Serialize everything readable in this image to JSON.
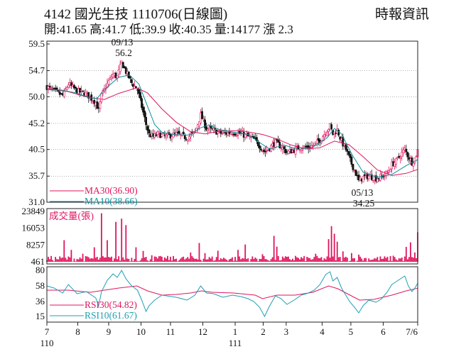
{
  "header": {
    "title": "4142 國光生技 1110706(日線圖)",
    "source": "時報資訊",
    "quote": "開:41.65 高:41.7 低:39.9 收:40.35 量:14177 漲 2.3"
  },
  "colors": {
    "up": "#e0155e",
    "down": "#111111",
    "ma30": "#e0155e",
    "ma10": "#0e8f9c",
    "volume": "#e0155e",
    "rsi30": "#e0155e",
    "rsi10": "#1f9fb4",
    "grid": "#666666"
  },
  "chart_data": [
    {
      "type": "candlestick",
      "panel": "price",
      "yticks": [
        "59.5",
        "54.7",
        "50.0",
        "45.2",
        "40.5",
        "35.7",
        "31.0"
      ],
      "ylim": [
        31.0,
        59.5
      ],
      "legend": [
        {
          "series": "ma30",
          "label": "MA30(36.90)"
        },
        {
          "series": "ma10",
          "label": "MA10(38.66)"
        }
      ],
      "annotations": [
        {
          "date": "09/13",
          "value": "56.2"
        },
        {
          "date": "05/13",
          "value": "34.25"
        }
      ],
      "price_path": [
        [
          0,
          51.8
        ],
        [
          10,
          51.0
        ],
        [
          22,
          50.2
        ],
        [
          30,
          52.3
        ],
        [
          42,
          51.0
        ],
        [
          55,
          50.5
        ],
        [
          68,
          49.0
        ],
        [
          72,
          47.5
        ],
        [
          76,
          50.2
        ],
        [
          84,
          52.3
        ],
        [
          92,
          54.0
        ],
        [
          98,
          53.6
        ],
        [
          104,
          56.2
        ],
        [
          110,
          54.5
        ],
        [
          118,
          52.5
        ],
        [
          126,
          51.3
        ],
        [
          132,
          48.2
        ],
        [
          138,
          45.0
        ],
        [
          142,
          43.2
        ],
        [
          148,
          42.8
        ],
        [
          155,
          43.3
        ],
        [
          165,
          42.8
        ],
        [
          180,
          43.3
        ],
        [
          195,
          42.6
        ],
        [
          206,
          43.6
        ],
        [
          214,
          46.7
        ],
        [
          222,
          44.3
        ],
        [
          232,
          43.9
        ],
        [
          245,
          43.3
        ],
        [
          258,
          43.6
        ],
        [
          270,
          43.3
        ],
        [
          280,
          42.8
        ],
        [
          288,
          42.3
        ],
        [
          296,
          41.2
        ],
        [
          303,
          40.0
        ],
        [
          310,
          40.8
        ],
        [
          318,
          41.8
        ],
        [
          326,
          41.0
        ],
        [
          334,
          40.0
        ],
        [
          344,
          40.4
        ],
        [
          354,
          41.0
        ],
        [
          364,
          40.8
        ],
        [
          372,
          41.4
        ],
        [
          380,
          42.2
        ],
        [
          388,
          43.7
        ],
        [
          394,
          44.7
        ],
        [
          398,
          43.3
        ],
        [
          404,
          44.0
        ],
        [
          410,
          42.0
        ],
        [
          416,
          40.5
        ],
        [
          422,
          38.5
        ],
        [
          428,
          36.8
        ],
        [
          434,
          34.8
        ],
        [
          440,
          35.5
        ],
        [
          448,
          35.7
        ],
        [
          458,
          35.3
        ],
        [
          466,
          35.6
        ],
        [
          474,
          36.3
        ],
        [
          480,
          37.8
        ],
        [
          486,
          38.4
        ],
        [
          492,
          39.5
        ],
        [
          498,
          40.5
        ],
        [
          503,
          39.2
        ],
        [
          508,
          38.2
        ],
        [
          512,
          38.9
        ],
        [
          516,
          40.35
        ]
      ],
      "ma30": [
        [
          0,
          51.5
        ],
        [
          30,
          50.9
        ],
        [
          60,
          49.8
        ],
        [
          80,
          49.5
        ],
        [
          100,
          50.6
        ],
        [
          125,
          51.6
        ],
        [
          140,
          50.7
        ],
        [
          160,
          47.8
        ],
        [
          180,
          45.4
        ],
        [
          200,
          43.7
        ],
        [
          220,
          43.3
        ],
        [
          240,
          43.8
        ],
        [
          270,
          43.9
        ],
        [
          300,
          43.2
        ],
        [
          320,
          42.4
        ],
        [
          340,
          41.3
        ],
        [
          360,
          40.6
        ],
        [
          380,
          40.8
        ],
        [
          400,
          42.0
        ],
        [
          420,
          41.4
        ],
        [
          440,
          39.2
        ],
        [
          460,
          36.8
        ],
        [
          480,
          35.8
        ],
        [
          500,
          36.2
        ],
        [
          516,
          36.9
        ]
      ],
      "ma10": [
        [
          0,
          51.3
        ],
        [
          20,
          51.2
        ],
        [
          40,
          50.7
        ],
        [
          60,
          49.8
        ],
        [
          70,
          49.7
        ],
        [
          80,
          51.3
        ],
        [
          100,
          53.5
        ],
        [
          115,
          53.9
        ],
        [
          128,
          52.3
        ],
        [
          140,
          48.3
        ],
        [
          150,
          45.0
        ],
        [
          160,
          43.6
        ],
        [
          180,
          43.1
        ],
        [
          200,
          43.1
        ],
        [
          212,
          44.3
        ],
        [
          225,
          44.9
        ],
        [
          240,
          44.1
        ],
        [
          260,
          43.6
        ],
        [
          280,
          43.2
        ],
        [
          300,
          41.4
        ],
        [
          310,
          40.6
        ],
        [
          330,
          41.3
        ],
        [
          350,
          40.5
        ],
        [
          370,
          40.9
        ],
        [
          390,
          42.6
        ],
        [
          400,
          44.3
        ],
        [
          410,
          43.3
        ],
        [
          425,
          39.5
        ],
        [
          440,
          36.4
        ],
        [
          460,
          35.5
        ],
        [
          480,
          36.0
        ],
        [
          500,
          37.6
        ],
        [
          516,
          38.66
        ]
      ]
    },
    {
      "type": "bar",
      "panel": "volume",
      "label": "成交量(張)",
      "yticks": [
        "23849",
        "16053",
        "8257",
        "461"
      ],
      "ylim": [
        461,
        23849
      ],
      "spikes": [
        [
          24,
          10500
        ],
        [
          34,
          6000
        ],
        [
          50,
          4200
        ],
        [
          66,
          7200
        ],
        [
          76,
          23000
        ],
        [
          84,
          10500
        ],
        [
          96,
          19000
        ],
        [
          104,
          20500
        ],
        [
          110,
          17500
        ],
        [
          124,
          7200
        ],
        [
          134,
          5500
        ],
        [
          146,
          3500
        ],
        [
          200,
          4800
        ],
        [
          212,
          9200
        ],
        [
          220,
          4500
        ],
        [
          238,
          5600
        ],
        [
          266,
          6000
        ],
        [
          276,
          8500
        ],
        [
          300,
          4000
        ],
        [
          316,
          12500
        ],
        [
          320,
          7500
        ],
        [
          346,
          3200
        ],
        [
          374,
          4200
        ],
        [
          392,
          11000
        ],
        [
          396,
          17000
        ],
        [
          400,
          13500
        ],
        [
          404,
          9800
        ],
        [
          412,
          5300
        ],
        [
          424,
          4500
        ],
        [
          434,
          3800
        ],
        [
          482,
          3300
        ],
        [
          500,
          7400
        ],
        [
          506,
          9500
        ],
        [
          512,
          4800
        ],
        [
          516,
          14177
        ]
      ]
    },
    {
      "type": "line",
      "panel": "rsi",
      "yticks": [
        "80",
        "58",
        "36",
        "15"
      ],
      "ylim": [
        15,
        80
      ],
      "legend": [
        {
          "series": "rsi30",
          "label": "RSI30(54.82)"
        },
        {
          "series": "rsi10",
          "label": "RSI10(61.67)"
        }
      ],
      "rsi30": [
        [
          0,
          52
        ],
        [
          30,
          52
        ],
        [
          60,
          49
        ],
        [
          80,
          52
        ],
        [
          100,
          55
        ],
        [
          125,
          58
        ],
        [
          140,
          51
        ],
        [
          160,
          45
        ],
        [
          180,
          46
        ],
        [
          200,
          48
        ],
        [
          215,
          51
        ],
        [
          230,
          49
        ],
        [
          260,
          48
        ],
        [
          290,
          45
        ],
        [
          300,
          40
        ],
        [
          320,
          45
        ],
        [
          345,
          45
        ],
        [
          370,
          49
        ],
        [
          392,
          58
        ],
        [
          405,
          54
        ],
        [
          420,
          46
        ],
        [
          435,
          38
        ],
        [
          455,
          39
        ],
        [
          480,
          45
        ],
        [
          500,
          51
        ],
        [
          516,
          54.82
        ]
      ],
      "rsi10": [
        [
          0,
          58
        ],
        [
          10,
          55
        ],
        [
          22,
          48
        ],
        [
          30,
          60
        ],
        [
          42,
          47
        ],
        [
          55,
          50
        ],
        [
          68,
          41
        ],
        [
          72,
          30
        ],
        [
          76,
          50
        ],
        [
          84,
          66
        ],
        [
          92,
          75
        ],
        [
          98,
          70
        ],
        [
          104,
          80
        ],
        [
          110,
          68
        ],
        [
          118,
          58
        ],
        [
          126,
          52
        ],
        [
          132,
          38
        ],
        [
          138,
          22
        ],
        [
          142,
          30
        ],
        [
          150,
          38
        ],
        [
          160,
          45
        ],
        [
          180,
          42
        ],
        [
          195,
          38
        ],
        [
          206,
          45
        ],
        [
          214,
          58
        ],
        [
          222,
          48
        ],
        [
          232,
          47
        ],
        [
          245,
          42
        ],
        [
          258,
          45
        ],
        [
          270,
          43
        ],
        [
          280,
          40
        ],
        [
          288,
          36
        ],
        [
          296,
          28
        ],
        [
          303,
          15
        ],
        [
          310,
          30
        ],
        [
          318,
          44
        ],
        [
          326,
          40
        ],
        [
          334,
          32
        ],
        [
          344,
          38
        ],
        [
          354,
          45
        ],
        [
          364,
          48
        ],
        [
          372,
          52
        ],
        [
          380,
          60
        ],
        [
          388,
          74
        ],
        [
          394,
          78
        ],
        [
          398,
          65
        ],
        [
          404,
          70
        ],
        [
          410,
          55
        ],
        [
          416,
          45
        ],
        [
          422,
          35
        ],
        [
          428,
          28
        ],
        [
          434,
          20
        ],
        [
          440,
          30
        ],
        [
          448,
          38
        ],
        [
          458,
          35
        ],
        [
          466,
          40
        ],
        [
          474,
          50
        ],
        [
          480,
          60
        ],
        [
          486,
          64
        ],
        [
          492,
          68
        ],
        [
          498,
          72
        ],
        [
          503,
          58
        ],
        [
          508,
          50
        ],
        [
          512,
          55
        ],
        [
          516,
          61.67
        ]
      ]
    }
  ],
  "xaxis": {
    "months": [
      {
        "label": "7",
        "t": 0
      },
      {
        "label": "8",
        "t": 43
      },
      {
        "label": "9",
        "t": 86
      },
      {
        "label": "10",
        "t": 131
      },
      {
        "label": "11",
        "t": 172
      },
      {
        "label": "12",
        "t": 217
      },
      {
        "label": "1",
        "t": 262
      },
      {
        "label": "2",
        "t": 301
      },
      {
        "label": "3",
        "t": 333
      },
      {
        "label": "4",
        "t": 383
      },
      {
        "label": "5",
        "t": 423
      },
      {
        "label": "6",
        "t": 468
      },
      {
        "label": "7/6",
        "t": 516
      }
    ],
    "years": [
      {
        "label": "110",
        "t": 0
      },
      {
        "label": "111",
        "t": 262
      }
    ]
  }
}
